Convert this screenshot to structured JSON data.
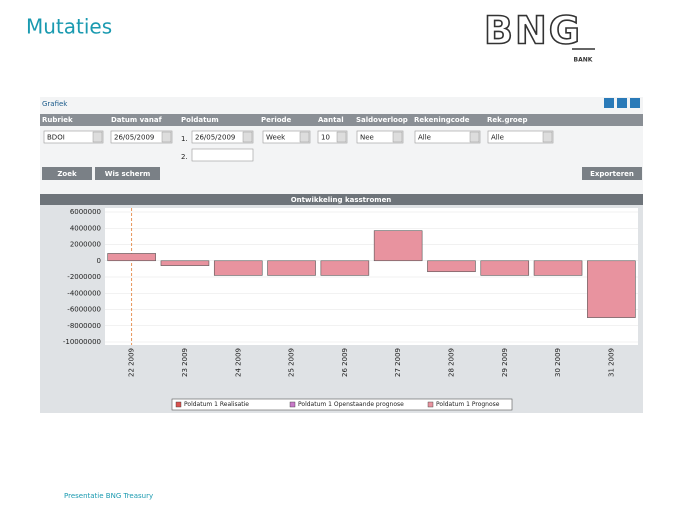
{
  "header": {
    "title": "Mutaties",
    "logo": "BNG",
    "logo_caption": "BANK"
  },
  "panel": {
    "title": "Grafiek",
    "fields": [
      {
        "label": "Rubriek",
        "value": "BDOI"
      },
      {
        "label": "Datum vanaf",
        "value": "26/05/2009"
      },
      {
        "label": "Poldatum",
        "value": "26/05/2009"
      },
      {
        "label": "Periode",
        "value": "Week"
      },
      {
        "label": "Aantal",
        "value": "10"
      },
      {
        "label": "Saldoverloop",
        "value": "Nee"
      },
      {
        "label": "Rekeningcode",
        "value": "Alle"
      },
      {
        "label": "Rek.groep",
        "value": "Alle"
      }
    ],
    "poldatum_rows": [
      "1.",
      "2."
    ],
    "buttons": [
      "Zoek",
      "Wis scherm",
      "Exporteren"
    ]
  },
  "chart_data": {
    "type": "bar",
    "title": "Ontwikkeling kasstromen",
    "categories": [
      "22 2009",
      "23 2009",
      "24 2009",
      "25 2009",
      "26 2009",
      "27 2009",
      "28 2009",
      "29 2009",
      "30 2009",
      "31 2009"
    ],
    "series": [
      {
        "name": "Poldatum 1 Realisatie",
        "color": "#d9534f",
        "values": [
          null,
          null,
          null,
          null,
          null,
          null,
          null,
          null,
          null,
          null
        ]
      },
      {
        "name": "Poldatum 1 Openstaande prognose",
        "color": "#c879c8",
        "values": [
          null,
          null,
          null,
          null,
          null,
          null,
          null,
          null,
          null,
          null
        ]
      },
      {
        "name": "Poldatum 1 Prognose",
        "color": "#e8939f",
        "values": [
          900000,
          -600000,
          -1800000,
          -1800000,
          -1800000,
          3700000,
          -1350000,
          -1800000,
          -1800000,
          -7000000
        ]
      }
    ],
    "ylim": [
      -10000000,
      6000000
    ],
    "yticks": [
      6000000,
      4000000,
      2000000,
      0,
      -2000000,
      -4000000,
      -6000000,
      -8000000,
      -10000000
    ],
    "grid": true,
    "legend": "bottom"
  },
  "footer": "Presentatie BNG Treasury"
}
